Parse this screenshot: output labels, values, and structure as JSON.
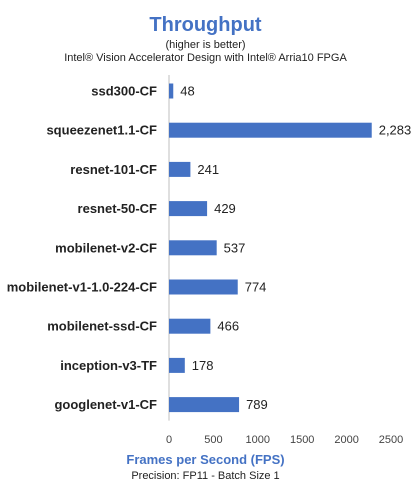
{
  "colors": {
    "bar": "#4472C4",
    "title": "#4472C4",
    "axis_title": "#4472C4"
  },
  "header": {
    "title": "Throughput",
    "subtitle1": "(higher is better)",
    "subtitle2": "Intel® Vision Accelerator Design with Intel® Arria10 FPGA"
  },
  "footer": {
    "axis_title": "Frames per Second (FPS)",
    "caption": "Precision: FP11 - Batch Size 1"
  },
  "chart_data": {
    "type": "bar",
    "orientation": "horizontal",
    "title": "Throughput",
    "subtitle": "(higher is better)",
    "xlabel": "Frames per Second (FPS)",
    "ylabel": "",
    "categories": [
      "ssd300-CF",
      "squeezenet1.1-CF",
      "resnet-101-CF",
      "resnet-50-CF",
      "mobilenet-v2-CF",
      "mobilenet-v1-1.0-224-CF",
      "mobilenet-ssd-CF",
      "inception-v3-TF",
      "googlenet-v1-CF"
    ],
    "values": [
      48,
      2283,
      241,
      429,
      537,
      774,
      466,
      178,
      789
    ],
    "value_labels": [
      "48",
      "2,283",
      "241",
      "429",
      "537",
      "774",
      "466",
      "178",
      "789"
    ],
    "xlim": [
      0,
      2500
    ],
    "xticks": [
      0,
      500,
      1000,
      1500,
      2000,
      2500
    ],
    "grid": false,
    "legend": "none"
  }
}
